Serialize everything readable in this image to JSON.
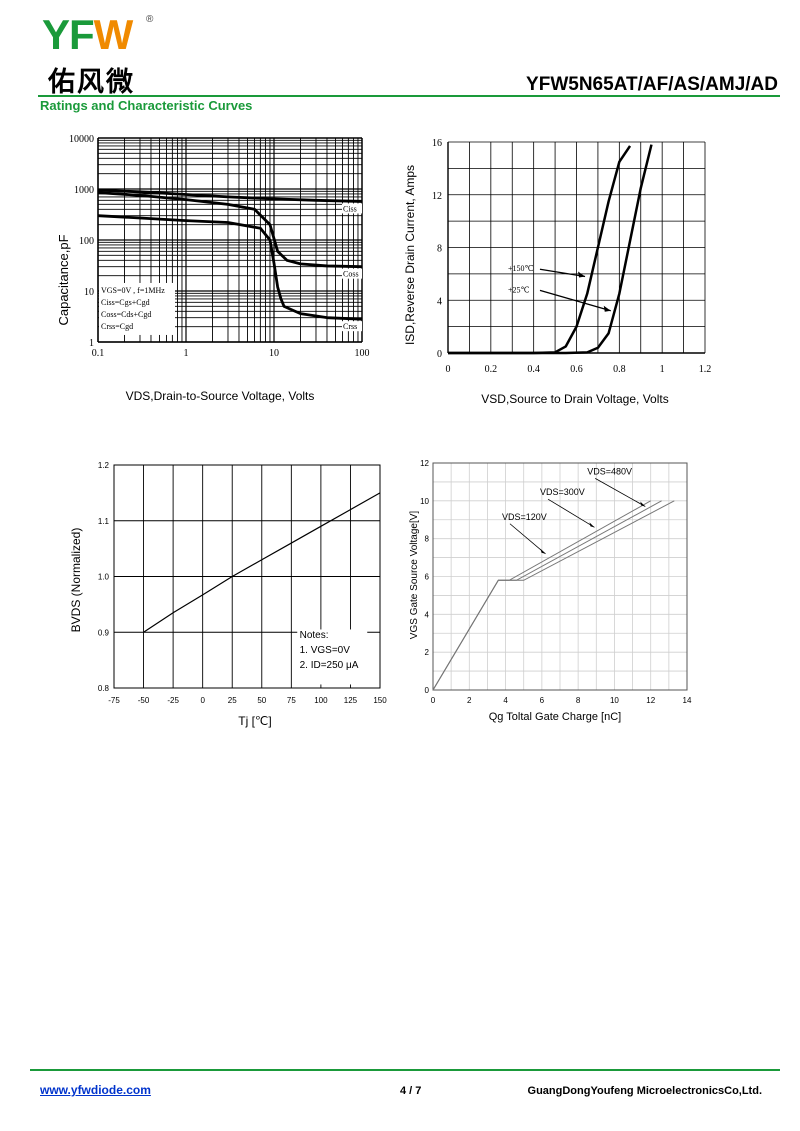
{
  "header": {
    "logo_text": "YFW",
    "company_cn": "佑风微",
    "part_number": "YFW5N65AT/AF/AS/AMJ/AD",
    "section_title": "Ratings and Characteristic Curves"
  },
  "footer": {
    "url": "www.yfwdiode.com",
    "page": "4 / 7",
    "company": "GuangDongYoufeng MicroelectronicsCo,Ltd."
  },
  "colors": {
    "brand_green": "#1a9a3a",
    "brand_orange": "#f08a00",
    "link_blue": "#0033cc"
  },
  "chart_data": [
    {
      "type": "line",
      "xscale": "log",
      "yscale": "log",
      "xlabel": "VDS,Drain-to-Source Voltage, Volts",
      "ylabel": "Capacitance,pF",
      "xlim": [
        0.1,
        100
      ],
      "ylim": [
        1,
        10000
      ],
      "xticks": [
        "0.1",
        "1",
        "10",
        "100"
      ],
      "yticks": [
        "1",
        "10",
        "100",
        "1000",
        "10000"
      ],
      "legend": [
        "VGS=0V , f=1MHz",
        "Ciss=Cgs+Cgd",
        "Coss=Cds+Cgd",
        "Crss=Cgd"
      ],
      "series": [
        {
          "name": "Ciss",
          "x": [
            0.1,
            0.3,
            1,
            3,
            10,
            30,
            100
          ],
          "y": [
            950,
            880,
            780,
            700,
            640,
            600,
            570
          ]
        },
        {
          "name": "Coss",
          "x": [
            0.1,
            0.3,
            1,
            3,
            6,
            9,
            11,
            14,
            20,
            40,
            100
          ],
          "y": [
            850,
            750,
            620,
            500,
            400,
            200,
            60,
            40,
            34,
            31,
            30
          ]
        },
        {
          "name": "Crss",
          "x": [
            0.1,
            0.3,
            1,
            3,
            7,
            9,
            10,
            11,
            12,
            13,
            20,
            40,
            100
          ],
          "y": [
            300,
            270,
            240,
            220,
            170,
            100,
            35,
            12,
            7,
            5,
            3.6,
            3.0,
            2.8
          ]
        }
      ]
    },
    {
      "type": "line",
      "xlabel": "VSD,Source to Drain Voltage, Volts",
      "ylabel": "ISD,Reverse Drain Current, Amps",
      "xlim": [
        0,
        1.2
      ],
      "ylim": [
        0,
        16
      ],
      "xticks": [
        "0",
        "0.2",
        "0.4",
        "0.6",
        "0.8",
        "1",
        "1.2"
      ],
      "yticks": [
        "0",
        "4",
        "8",
        "12",
        "16"
      ],
      "series": [
        {
          "name": "+150℃",
          "x": [
            0,
            0.4,
            0.5,
            0.55,
            0.6,
            0.65,
            0.7,
            0.75,
            0.8,
            0.85
          ],
          "y": [
            0,
            0,
            0.05,
            0.5,
            2,
            4.5,
            8,
            11.5,
            14.5,
            15.7
          ]
        },
        {
          "name": "+25℃",
          "x": [
            0,
            0.55,
            0.65,
            0.7,
            0.75,
            0.8,
            0.85,
            0.9,
            0.95
          ],
          "y": [
            0,
            0,
            0.05,
            0.4,
            1.5,
            4.5,
            8.5,
            12.5,
            15.8
          ]
        }
      ],
      "annotations": [
        "+150℃",
        "+25℃"
      ]
    },
    {
      "type": "line",
      "xlabel": "Tj [℃]",
      "ylabel": "BVDS (Normalized)",
      "xlim": [
        -75,
        150
      ],
      "ylim": [
        0.8,
        1.2
      ],
      "xticks": [
        "-75",
        "-50",
        "-25",
        "0",
        "25",
        "50",
        "75",
        "100",
        "125",
        "150"
      ],
      "yticks": [
        "0.8",
        "0.9",
        "1.0",
        "1.1",
        "1.2"
      ],
      "series": [
        {
          "x": [
            -50,
            -25,
            0,
            25,
            50,
            75,
            100,
            125,
            150
          ],
          "y": [
            0.9,
            0.935,
            0.967,
            1.0,
            1.03,
            1.06,
            1.09,
            1.12,
            1.15
          ]
        }
      ],
      "notes": [
        "Notes:",
        "1. VGS=0V",
        "2. ID=250 μA"
      ]
    },
    {
      "type": "line",
      "xlabel": "Qg Toltal Gate Charge [nC]",
      "ylabel": "VGS Gate Source Voltage[V]",
      "xlim": [
        0,
        14
      ],
      "ylim": [
        0,
        12
      ],
      "xticks": [
        "0",
        "2",
        "4",
        "6",
        "8",
        "10",
        "12",
        "14"
      ],
      "yticks": [
        "0",
        "2",
        "4",
        "6",
        "8",
        "10",
        "12"
      ],
      "series": [
        {
          "name": "VDS=120V",
          "x": [
            0,
            3.6,
            4.2,
            12
          ],
          "y": [
            0,
            5.8,
            5.8,
            10
          ]
        },
        {
          "name": "VDS=300V",
          "x": [
            0,
            3.6,
            4.6,
            12.6
          ],
          "y": [
            0,
            5.8,
            5.8,
            10
          ]
        },
        {
          "name": "VDS=480V",
          "x": [
            0,
            3.6,
            5.0,
            13.3
          ],
          "y": [
            0,
            5.8,
            5.8,
            10
          ]
        }
      ],
      "annotations": [
        "VDS=120V",
        "VDS=300V",
        "VDS=480V"
      ]
    }
  ]
}
